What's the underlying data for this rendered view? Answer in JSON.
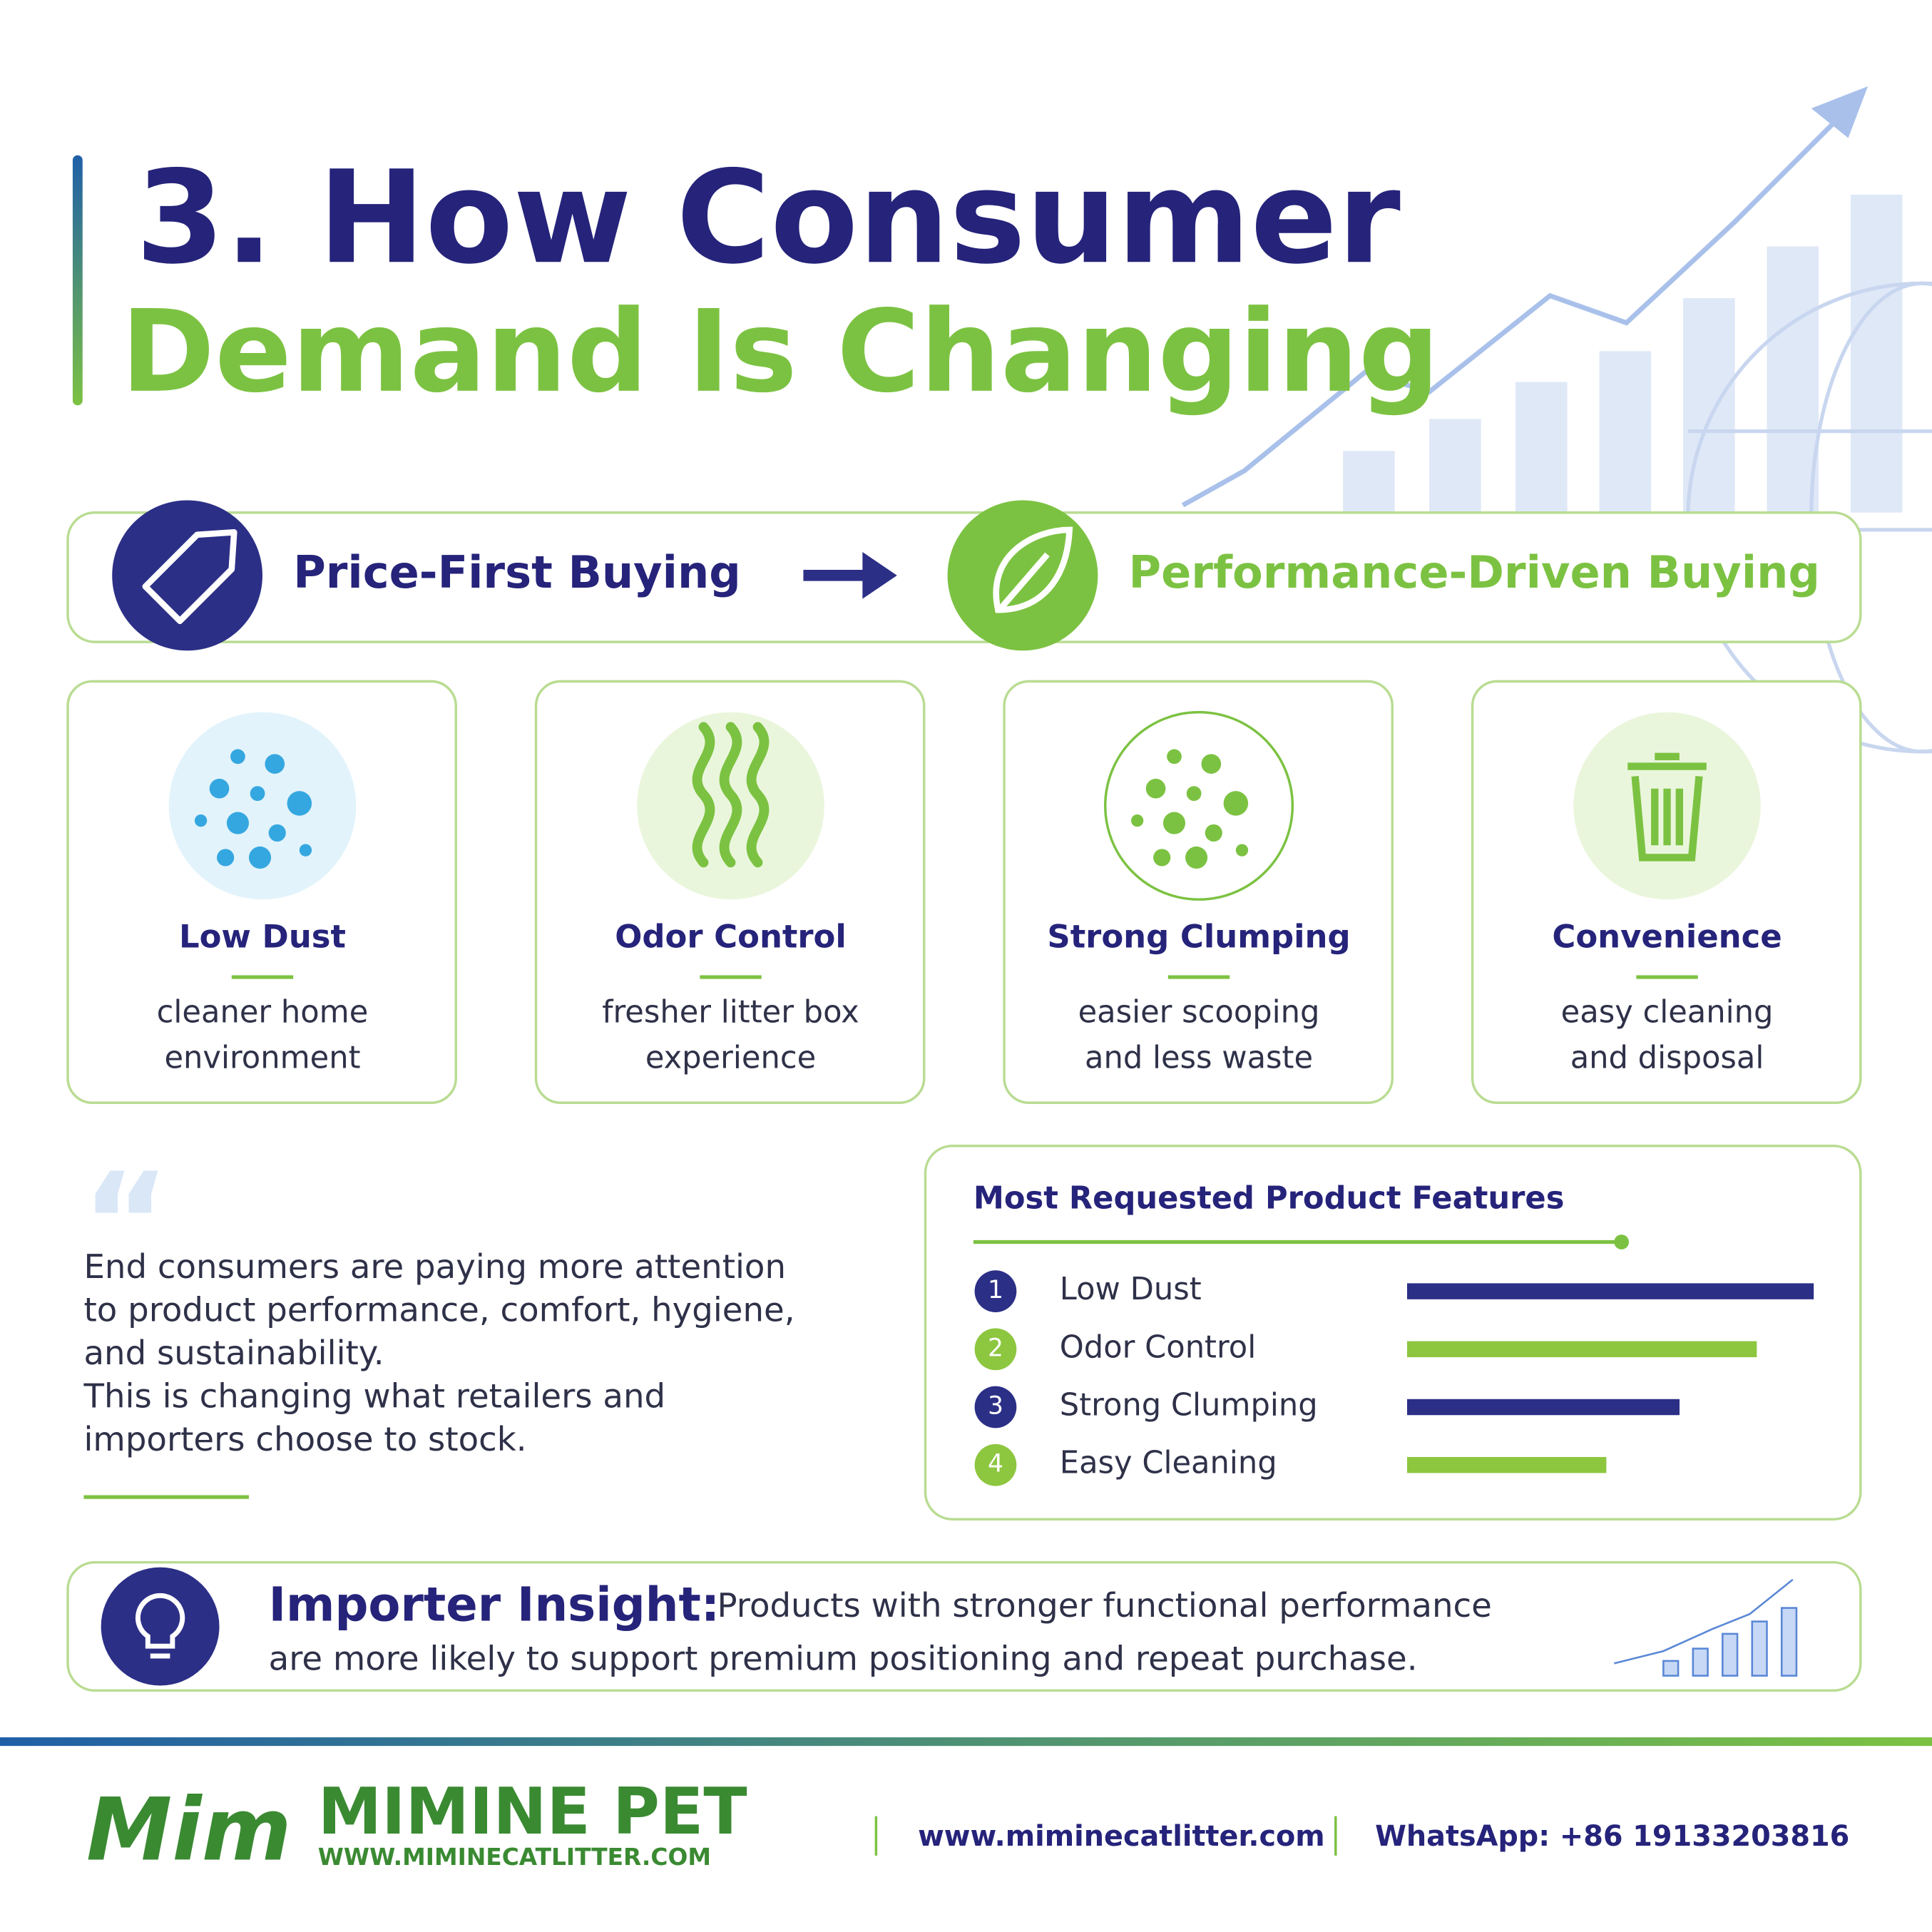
{
  "header": {
    "title_line1": "3. How Consumer",
    "title_line2": "Demand Is Changing"
  },
  "shift": {
    "from": "Price-First Buying",
    "to": "Performance-Driven Buying"
  },
  "cards": [
    {
      "title": "Low Dust",
      "lines": [
        "cleaner home",
        "environment"
      ]
    },
    {
      "title": "Odor Control",
      "lines": [
        "fresher litter box",
        "experience"
      ]
    },
    {
      "title": "Strong Clumping",
      "lines": [
        "easier scooping",
        "and less waste"
      ]
    },
    {
      "title": "Convenience",
      "lines": [
        "easy cleaning",
        "and disposal"
      ]
    }
  ],
  "quote": {
    "lines": [
      "End consumers are paying more attention",
      "to product performance, comfort, hygiene,",
      "and sustainability.",
      "This is changing what retailers and",
      "importers choose to stock."
    ]
  },
  "chart_data": {
    "type": "bar",
    "title": "Most Requested Product Features",
    "ranks": [
      1,
      2,
      3,
      4
    ],
    "categories": [
      "Low Dust",
      "Odor Control",
      "Strong Clumping",
      "Easy Cleaning"
    ],
    "values": [
      100,
      86,
      67,
      49
    ],
    "xlim": [
      0,
      100
    ],
    "colors": [
      "#2b2f86",
      "#8dc63f",
      "#2b2f86",
      "#8dc63f"
    ]
  },
  "insight": {
    "label": "Importer Insight:",
    "line1": "Products with stronger functional performance",
    "line2": "are more likely to support premium positioning and repeat purchase."
  },
  "footer": {
    "brand": "MIMINE PET",
    "brand_url": "WWW.MIMINECATLITTER.COM",
    "website": "www.miminecatlitter.com",
    "whatsapp": "WhatsApp: +86 19133203816"
  }
}
